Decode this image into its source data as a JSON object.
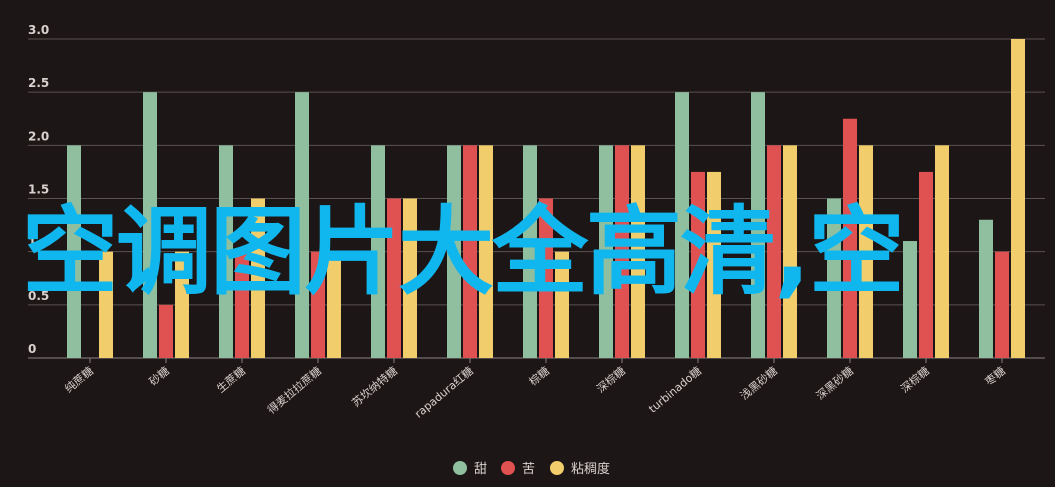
{
  "chart_data": {
    "type": "bar",
    "categories": [
      "纯蔗糖",
      "砂糖",
      "生蔗糖",
      "得麦拉拉蔗糖",
      "苏坎纳特糖",
      "rapadura红糖",
      "棕糖",
      "深棕糖",
      "turbinado糖",
      "浅黑砂糖",
      "深黑砂糖",
      "深棕糖",
      "枣糖"
    ],
    "series": [
      {
        "name": "甜",
        "color": "#8fbf9f",
        "values": [
          2.0,
          2.5,
          2.0,
          2.5,
          2.0,
          2.0,
          2.0,
          2.0,
          2.5,
          2.5,
          1.5,
          1.1,
          1.3
        ]
      },
      {
        "name": "苦",
        "color": "#e05252",
        "values": [
          0,
          0.5,
          1.0,
          1.0,
          1.5,
          2.0,
          1.5,
          2.0,
          1.75,
          2.0,
          2.25,
          1.75,
          1.0
        ]
      },
      {
        "name": "粘稠度",
        "color": "#f2cd6b",
        "values": [
          1.0,
          1.0,
          1.5,
          1.0,
          1.5,
          2.0,
          1.0,
          2.0,
          1.75,
          2.0,
          2.0,
          2.0,
          3.0
        ]
      }
    ],
    "y_ticks": [
      "0",
      "0.5",
      "1.0",
      "1.5",
      "2.0",
      "2.5",
      "3.0"
    ],
    "ylim": [
      0,
      3.0
    ],
    "grid": true,
    "legend_position": "bottom-center"
  },
  "overlay_text": "空调图片大全高清,空"
}
